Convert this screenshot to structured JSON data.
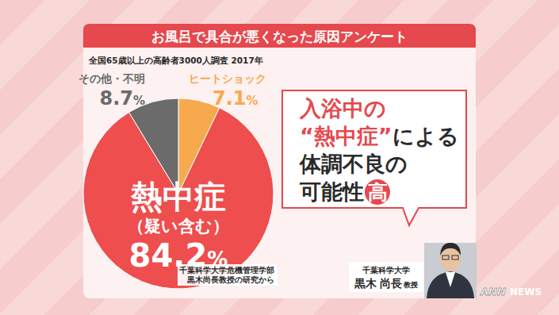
{
  "chart_data": {
    "type": "pie",
    "title": "お風呂で具合が悪くなった原因アンケート",
    "subtitle": "全国65歳以上の高齢者3000人調査 2017年",
    "categories": [
      "ヒートショック",
      "熱中症（疑い含む）",
      "その他・不明"
    ],
    "values": [
      7.1,
      84.2,
      8.7
    ],
    "value_labels": [
      "7.1%",
      "84.2%",
      "8.7%"
    ],
    "colors": [
      "#f7a94e",
      "#ee4e4e",
      "#6b6b6b"
    ],
    "data_labels": true,
    "annotations": {
      "callout": [
        [
          "入浴中の"
        ],
        [
          "“熱中症”",
          "による"
        ],
        [
          "体調不良の"
        ],
        [
          "可能性",
          "高"
        ]
      ],
      "source": [
        "千葉科学大学危機管理学部",
        "黒木尚長教授の研究から"
      ],
      "person": [
        "千葉科学大学",
        "黒木 尚長",
        "教授"
      ],
      "logo": [
        "ANN",
        "NEWS"
      ]
    }
  }
}
